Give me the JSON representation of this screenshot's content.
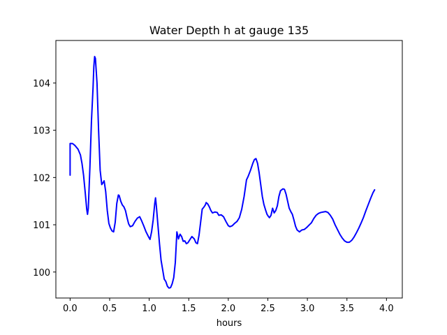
{
  "chart_data": {
    "type": "line",
    "title": "Water Depth h at gauge 135",
    "xlabel": "hours",
    "ylabel": "",
    "xlim": [
      -0.18,
      4.2
    ],
    "ylim": [
      99.45,
      104.9
    ],
    "xticks": [
      0.0,
      0.5,
      1.0,
      1.5,
      2.0,
      2.5,
      3.0,
      3.5,
      4.0
    ],
    "xtick_labels": [
      "0.0",
      "0.5",
      "1.0",
      "1.5",
      "2.0",
      "2.5",
      "3.0",
      "3.5",
      "4.0"
    ],
    "yticks": [
      100,
      101,
      102,
      103,
      104
    ],
    "ytick_labels": [
      "100",
      "101",
      "102",
      "103",
      "104"
    ],
    "grid": false,
    "legend": "none",
    "series": [
      {
        "color": "#0000ff",
        "points": [
          [
            0.0,
            102.05
          ],
          [
            0.0,
            102.72
          ],
          [
            0.03,
            102.72
          ],
          [
            0.06,
            102.68
          ],
          [
            0.1,
            102.6
          ],
          [
            0.13,
            102.48
          ],
          [
            0.15,
            102.3
          ],
          [
            0.17,
            102.05
          ],
          [
            0.19,
            101.7
          ],
          [
            0.21,
            101.33
          ],
          [
            0.22,
            101.22
          ],
          [
            0.23,
            101.35
          ],
          [
            0.25,
            102.2
          ],
          [
            0.27,
            103.2
          ],
          [
            0.29,
            103.9
          ],
          [
            0.3,
            104.35
          ],
          [
            0.31,
            104.56
          ],
          [
            0.32,
            104.52
          ],
          [
            0.34,
            104.0
          ],
          [
            0.36,
            103.0
          ],
          [
            0.38,
            102.15
          ],
          [
            0.4,
            101.85
          ],
          [
            0.42,
            101.9
          ],
          [
            0.43,
            101.93
          ],
          [
            0.45,
            101.7
          ],
          [
            0.47,
            101.3
          ],
          [
            0.49,
            101.03
          ],
          [
            0.51,
            100.93
          ],
          [
            0.53,
            100.87
          ],
          [
            0.55,
            100.85
          ],
          [
            0.57,
            101.05
          ],
          [
            0.59,
            101.45
          ],
          [
            0.61,
            101.63
          ],
          [
            0.62,
            101.62
          ],
          [
            0.64,
            101.5
          ],
          [
            0.66,
            101.42
          ],
          [
            0.68,
            101.38
          ],
          [
            0.7,
            101.3
          ],
          [
            0.72,
            101.15
          ],
          [
            0.74,
            101.02
          ],
          [
            0.76,
            100.96
          ],
          [
            0.79,
            100.98
          ],
          [
            0.82,
            101.07
          ],
          [
            0.85,
            101.14
          ],
          [
            0.88,
            101.17
          ],
          [
            0.9,
            101.1
          ],
          [
            0.93,
            100.98
          ],
          [
            0.96,
            100.85
          ],
          [
            0.99,
            100.75
          ],
          [
            1.01,
            100.69
          ],
          [
            1.03,
            100.85
          ],
          [
            1.05,
            101.1
          ],
          [
            1.07,
            101.45
          ],
          [
            1.08,
            101.57
          ],
          [
            1.09,
            101.4
          ],
          [
            1.11,
            101.0
          ],
          [
            1.13,
            100.6
          ],
          [
            1.15,
            100.25
          ],
          [
            1.17,
            100.05
          ],
          [
            1.19,
            99.85
          ],
          [
            1.21,
            99.8
          ],
          [
            1.23,
            99.7
          ],
          [
            1.25,
            99.66
          ],
          [
            1.27,
            99.67
          ],
          [
            1.29,
            99.75
          ],
          [
            1.31,
            99.88
          ],
          [
            1.33,
            100.2
          ],
          [
            1.35,
            100.85
          ],
          [
            1.37,
            100.7
          ],
          [
            1.39,
            100.8
          ],
          [
            1.41,
            100.75
          ],
          [
            1.43,
            100.65
          ],
          [
            1.45,
            100.66
          ],
          [
            1.47,
            100.6
          ],
          [
            1.49,
            100.62
          ],
          [
            1.52,
            100.7
          ],
          [
            1.54,
            100.75
          ],
          [
            1.57,
            100.7
          ],
          [
            1.59,
            100.62
          ],
          [
            1.61,
            100.6
          ],
          [
            1.63,
            100.78
          ],
          [
            1.65,
            101.05
          ],
          [
            1.67,
            101.33
          ],
          [
            1.69,
            101.37
          ],
          [
            1.71,
            101.42
          ],
          [
            1.72,
            101.47
          ],
          [
            1.74,
            101.44
          ],
          [
            1.76,
            101.38
          ],
          [
            1.78,
            101.3
          ],
          [
            1.8,
            101.25
          ],
          [
            1.83,
            101.27
          ],
          [
            1.86,
            101.26
          ],
          [
            1.88,
            101.2
          ],
          [
            1.91,
            101.21
          ],
          [
            1.94,
            101.17
          ],
          [
            1.97,
            101.07
          ],
          [
            2.0,
            100.98
          ],
          [
            2.02,
            100.96
          ],
          [
            2.05,
            100.98
          ],
          [
            2.08,
            101.03
          ],
          [
            2.11,
            101.07
          ],
          [
            2.14,
            101.15
          ],
          [
            2.17,
            101.33
          ],
          [
            2.2,
            101.6
          ],
          [
            2.23,
            101.95
          ],
          [
            2.25,
            102.02
          ],
          [
            2.28,
            102.15
          ],
          [
            2.31,
            102.3
          ],
          [
            2.33,
            102.38
          ],
          [
            2.35,
            102.4
          ],
          [
            2.37,
            102.3
          ],
          [
            2.39,
            102.1
          ],
          [
            2.41,
            101.85
          ],
          [
            2.43,
            101.6
          ],
          [
            2.45,
            101.43
          ],
          [
            2.47,
            101.32
          ],
          [
            2.49,
            101.22
          ],
          [
            2.51,
            101.17
          ],
          [
            2.52,
            101.15
          ],
          [
            2.54,
            101.2
          ],
          [
            2.56,
            101.35
          ],
          [
            2.58,
            101.25
          ],
          [
            2.6,
            101.3
          ],
          [
            2.62,
            101.4
          ],
          [
            2.64,
            101.6
          ],
          [
            2.66,
            101.72
          ],
          [
            2.69,
            101.76
          ],
          [
            2.71,
            101.75
          ],
          [
            2.73,
            101.65
          ],
          [
            2.75,
            101.5
          ],
          [
            2.77,
            101.35
          ],
          [
            2.79,
            101.28
          ],
          [
            2.81,
            101.22
          ],
          [
            2.83,
            101.1
          ],
          [
            2.85,
            100.97
          ],
          [
            2.87,
            100.89
          ],
          [
            2.9,
            100.85
          ],
          [
            2.93,
            100.89
          ],
          [
            2.96,
            100.9
          ],
          [
            2.99,
            100.94
          ],
          [
            3.02,
            100.99
          ],
          [
            3.05,
            101.04
          ],
          [
            3.08,
            101.13
          ],
          [
            3.11,
            101.2
          ],
          [
            3.14,
            101.24
          ],
          [
            3.17,
            101.26
          ],
          [
            3.2,
            101.27
          ],
          [
            3.23,
            101.28
          ],
          [
            3.26,
            101.26
          ],
          [
            3.29,
            101.2
          ],
          [
            3.32,
            101.12
          ],
          [
            3.35,
            101.0
          ],
          [
            3.38,
            100.9
          ],
          [
            3.41,
            100.8
          ],
          [
            3.44,
            100.72
          ],
          [
            3.47,
            100.66
          ],
          [
            3.5,
            100.63
          ],
          [
            3.53,
            100.63
          ],
          [
            3.56,
            100.67
          ],
          [
            3.59,
            100.74
          ],
          [
            3.62,
            100.83
          ],
          [
            3.65,
            100.93
          ],
          [
            3.68,
            101.04
          ],
          [
            3.71,
            101.16
          ],
          [
            3.74,
            101.3
          ],
          [
            3.77,
            101.43
          ],
          [
            3.8,
            101.56
          ],
          [
            3.83,
            101.68
          ],
          [
            3.85,
            101.74
          ]
        ]
      }
    ]
  }
}
